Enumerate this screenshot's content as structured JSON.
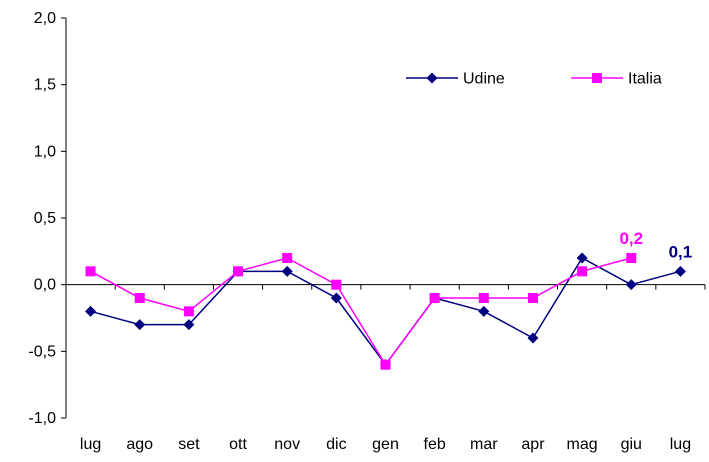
{
  "chart_data": {
    "type": "line",
    "categories": [
      "lug",
      "ago",
      "set",
      "ott",
      "nov",
      "dic",
      "gen",
      "feb",
      "mar",
      "apr",
      "mag",
      "giu",
      "lug"
    ],
    "ylim": [
      -1.0,
      2.0
    ],
    "yticks": [
      -1.0,
      -0.5,
      0.0,
      0.5,
      1.0,
      1.5,
      2.0
    ],
    "ytick_labels": [
      "-1,0",
      "-0,5",
      "0,0",
      "0,5",
      "1,0",
      "1,5",
      "2,0"
    ],
    "grid": false,
    "legend_position": "top-right",
    "series": [
      {
        "name": "Udine",
        "color": "#000080",
        "marker": "diamond",
        "values": [
          -0.2,
          -0.3,
          -0.3,
          0.1,
          0.1,
          -0.1,
          -0.6,
          -0.1,
          -0.2,
          -0.4,
          0.2,
          0.0,
          0.1
        ]
      },
      {
        "name": "Italia",
        "color": "#ff00ff",
        "marker": "square",
        "values": [
          0.1,
          -0.1,
          -0.2,
          0.1,
          0.2,
          0.0,
          -0.6,
          -0.1,
          -0.1,
          -0.1,
          0.1,
          0.2,
          null
        ]
      }
    ],
    "annotations": [
      {
        "series": "Italia",
        "index": 11,
        "text": "0,2",
        "color": "#ff00ff"
      },
      {
        "series": "Udine",
        "index": 12,
        "text": "0,1",
        "color": "#000080"
      }
    ]
  }
}
